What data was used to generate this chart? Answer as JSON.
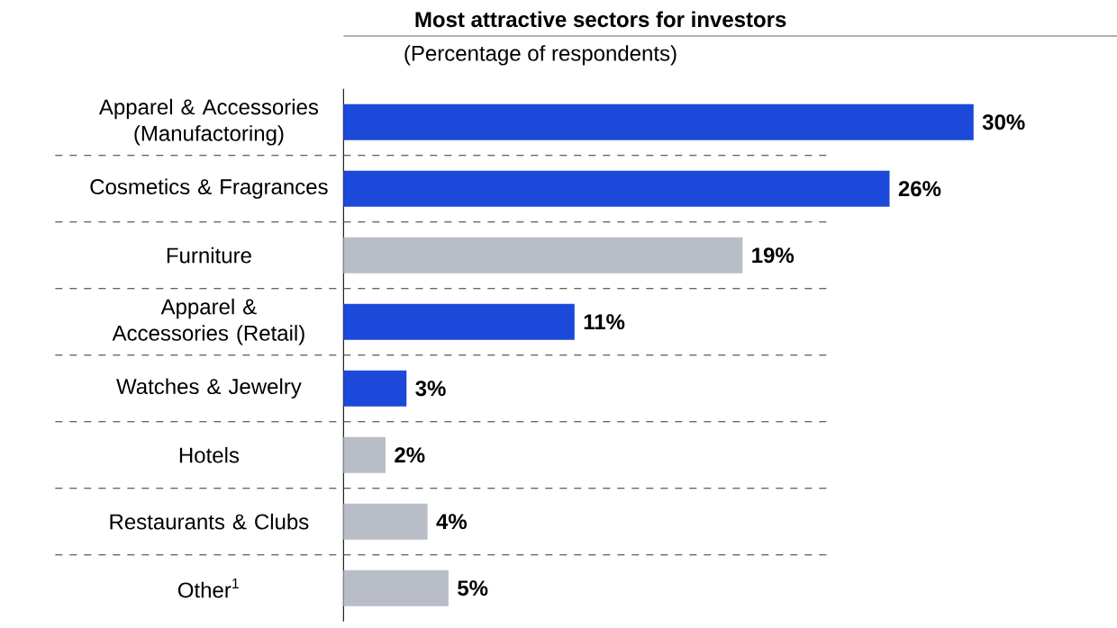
{
  "chart_data": {
    "type": "bar",
    "orientation": "horizontal",
    "title": "Most attractive sectors for investors",
    "subtitle": "(Percentage of respondents)",
    "categories": [
      "Apparel & Accessories (Manufactoring)",
      "Cosmetics & Fragrances",
      "Furniture",
      "Apparel & Accessories (Retail)",
      "Watches & Jewelry",
      "Hotels",
      "Restaurants & Clubs",
      "Other$^{1}$"
    ],
    "values": [
      30,
      26,
      19,
      11,
      3,
      2,
      4,
      5
    ],
    "colors": [
      "#1c49d9",
      "#1c49d9",
      "#b9bdc8",
      "#1c49d9",
      "#1c49d9",
      "#b9bdc8",
      "#b9bdc8",
      "#b9bdc8"
    ],
    "value_labels": [
      "30%",
      "26%",
      "19%",
      "11%",
      "3%",
      "2%",
      "4%",
      "5%"
    ]
  }
}
